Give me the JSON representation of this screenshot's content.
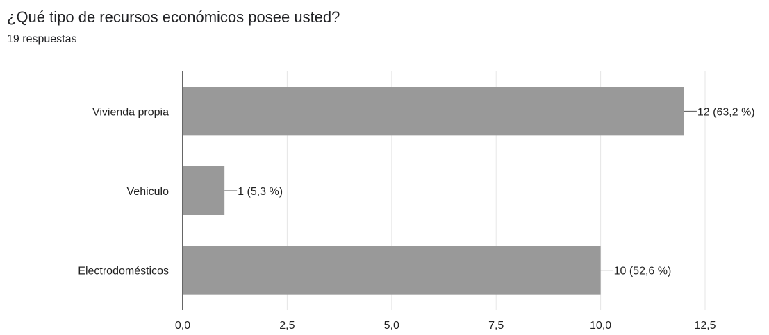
{
  "header": {
    "title": "¿Qué tipo de recursos económicos posee usted?",
    "responses": "19 respuestas"
  },
  "chart_data": {
    "type": "bar",
    "orientation": "horizontal",
    "categories": [
      "Vivienda propia",
      "Vehiculo",
      "Electrodomésticos"
    ],
    "values": [
      12,
      1,
      10
    ],
    "data_labels": [
      "12 (63,2 %)",
      "1 (5,3 %)",
      "10 (52,6 %)"
    ],
    "x_ticks": [
      0,
      2.5,
      5,
      7.5,
      10,
      12.5
    ],
    "x_tick_labels": [
      "0,0",
      "2,5",
      "5,0",
      "7,5",
      "10,0",
      "12,5"
    ],
    "xlim": [
      0,
      12.5
    ],
    "grid": true,
    "bar_color": "#999999",
    "grid_color": "#e6e6e6",
    "axis_color": "#333333"
  }
}
